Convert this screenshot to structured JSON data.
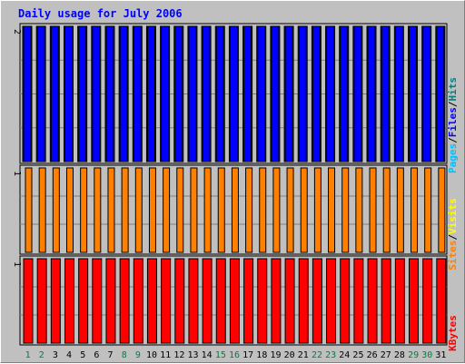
{
  "chart_data": {
    "type": "bar",
    "title": "Daily usage for July 2006",
    "categories": [
      "1",
      "2",
      "3",
      "4",
      "5",
      "6",
      "7",
      "8",
      "9",
      "10",
      "11",
      "12",
      "13",
      "14",
      "15",
      "16",
      "17",
      "18",
      "19",
      "20",
      "21",
      "22",
      "23",
      "24",
      "25",
      "26",
      "27",
      "28",
      "29",
      "30",
      "31"
    ],
    "weekend_days": [
      "1",
      "2",
      "8",
      "9",
      "15",
      "16",
      "22",
      "23",
      "29",
      "30"
    ],
    "panels": [
      {
        "name": "hits-files-pages",
        "ytick_label": "2",
        "ymax": 2,
        "side_labels": [
          {
            "text": "Pages",
            "color": "#00c0ff"
          },
          {
            "text": "/",
            "color": "#000000"
          },
          {
            "text": "Files",
            "color": "#0000ff"
          },
          {
            "text": "/",
            "color": "#000000"
          },
          {
            "text": "Hits",
            "color": "#008080"
          }
        ],
        "series": [
          {
            "name": "Hits",
            "color": "#008040",
            "values": [
              2,
              2,
              2,
              2,
              2,
              2,
              2,
              2,
              2,
              2,
              2,
              2,
              2,
              2,
              2,
              2,
              2,
              2,
              2,
              2,
              2,
              2,
              2,
              2,
              2,
              2,
              2,
              2,
              2,
              2,
              2
            ]
          },
          {
            "name": "Files",
            "color": "#0000ff",
            "values": [
              2,
              2,
              2,
              2,
              2,
              2,
              2,
              2,
              2,
              2,
              2,
              2,
              2,
              2,
              2,
              2,
              2,
              2,
              2,
              2,
              2,
              2,
              2,
              2,
              2,
              2,
              2,
              2,
              2,
              2,
              2
            ]
          }
        ]
      },
      {
        "name": "visits-sites",
        "ytick_label": "1",
        "ymax": 1,
        "side_labels": [
          {
            "text": "Sites",
            "color": "#ff8000"
          },
          {
            "text": "/",
            "color": "#000000"
          },
          {
            "text": "Visits",
            "color": "#ffff00"
          }
        ],
        "series": [
          {
            "name": "Sites",
            "color": "#ff8000",
            "values": [
              1,
              1,
              1,
              1,
              1,
              1,
              1,
              1,
              1,
              1,
              1,
              1,
              1,
              1,
              1,
              1,
              1,
              1,
              1,
              1,
              1,
              1,
              1,
              1,
              1,
              1,
              1,
              1,
              1,
              1,
              1
            ]
          }
        ]
      },
      {
        "name": "kbytes",
        "ytick_label": "1",
        "ymax": 1,
        "side_labels": [
          {
            "text": "KBytes",
            "color": "#ff0000"
          }
        ],
        "series": [
          {
            "name": "KBytes",
            "color": "#ff0000",
            "values": [
              1,
              1,
              1,
              1,
              1,
              1,
              1,
              1,
              1,
              1,
              1,
              1,
              1,
              1,
              1,
              1,
              1,
              1,
              1,
              1,
              1,
              1,
              1,
              1,
              1,
              1,
              1,
              1,
              1,
              1,
              1
            ]
          }
        ]
      }
    ],
    "colors": {
      "frame_bg": "#c0c0c0",
      "panel_bg": "#c0c0c0",
      "grid": "#808080",
      "weekday_label": "#000000",
      "weekend_label": "#008040",
      "bar_outline": "#000000"
    }
  }
}
